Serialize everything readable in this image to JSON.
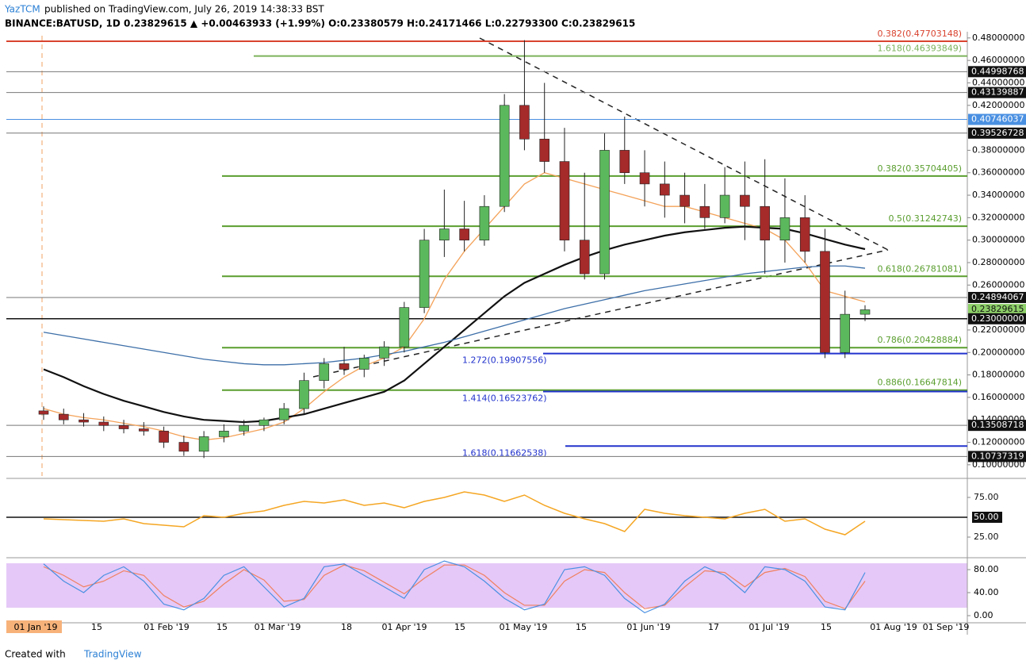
{
  "header": {
    "author": "YazTCM",
    "published": "published on TradingView.com, July 26, 2019 14:38:33 BST",
    "symbol": "BINANCE:BATUSD, 1D  0.23829615 ▲ +0.00463933 (+1.99%)  O:0.23380579  H:0.24171466  L:0.22793300  C:0.23829615"
  },
  "footer": {
    "created": "Created with",
    "brand": "TradingView"
  },
  "chart_data": {
    "type": "candlestick",
    "open": [
      0.148,
      0.145,
      0.14,
      0.138,
      0.135,
      0.132,
      0.13,
      0.12,
      0.112,
      0.125,
      0.13,
      0.135,
      0.14,
      0.15,
      0.175,
      0.19,
      0.185,
      0.195,
      0.205,
      0.24,
      0.3,
      0.31,
      0.3,
      0.33,
      0.42,
      0.39,
      0.37,
      0.3,
      0.27,
      0.38,
      0.36,
      0.35,
      0.34,
      0.33,
      0.32,
      0.34,
      0.33,
      0.3,
      0.32,
      0.29,
      0.2,
      0.234
    ],
    "high": [
      0.152,
      0.15,
      0.146,
      0.143,
      0.14,
      0.138,
      0.134,
      0.126,
      0.13,
      0.136,
      0.14,
      0.142,
      0.155,
      0.182,
      0.195,
      0.205,
      0.198,
      0.21,
      0.245,
      0.31,
      0.345,
      0.335,
      0.34,
      0.43,
      0.478,
      0.44,
      0.4,
      0.36,
      0.395,
      0.41,
      0.38,
      0.37,
      0.36,
      0.35,
      0.365,
      0.37,
      0.372,
      0.355,
      0.34,
      0.31,
      0.255,
      0.242
    ],
    "low": [
      0.14,
      0.136,
      0.134,
      0.13,
      0.128,
      0.126,
      0.115,
      0.108,
      0.106,
      0.12,
      0.126,
      0.13,
      0.136,
      0.145,
      0.168,
      0.18,
      0.178,
      0.188,
      0.2,
      0.235,
      0.285,
      0.29,
      0.295,
      0.325,
      0.38,
      0.36,
      0.29,
      0.265,
      0.265,
      0.35,
      0.33,
      0.32,
      0.315,
      0.31,
      0.315,
      0.3,
      0.27,
      0.28,
      0.28,
      0.195,
      0.195,
      0.228
    ],
    "close": [
      0.145,
      0.14,
      0.138,
      0.135,
      0.132,
      0.13,
      0.12,
      0.112,
      0.125,
      0.13,
      0.135,
      0.14,
      0.15,
      0.175,
      0.19,
      0.185,
      0.195,
      0.205,
      0.24,
      0.3,
      0.31,
      0.3,
      0.33,
      0.42,
      0.39,
      0.37,
      0.3,
      0.27,
      0.38,
      0.36,
      0.35,
      0.34,
      0.33,
      0.32,
      0.34,
      0.33,
      0.3,
      0.32,
      0.29,
      0.2,
      0.234,
      0.238
    ],
    "up_color": "#5cb85c",
    "down_color": "#a52a2a",
    "series": [
      {
        "color": "#f4a259",
        "values": [
          0.15,
          0.145,
          0.142,
          0.14,
          0.137,
          0.134,
          0.13,
          0.125,
          0.122,
          0.124,
          0.128,
          0.132,
          0.138,
          0.15,
          0.165,
          0.178,
          0.188,
          0.195,
          0.205,
          0.23,
          0.265,
          0.29,
          0.31,
          0.33,
          0.35,
          0.36,
          0.355,
          0.35,
          0.345,
          0.34,
          0.335,
          0.33,
          0.33,
          0.325,
          0.32,
          0.315,
          0.31,
          0.3,
          0.28,
          0.255,
          0.25,
          0.245
        ]
      },
      {
        "color": "#111111",
        "values": [
          0.185,
          0.178,
          0.17,
          0.163,
          0.157,
          0.152,
          0.147,
          0.143,
          0.14,
          0.139,
          0.138,
          0.139,
          0.142,
          0.145,
          0.15,
          0.155,
          0.16,
          0.165,
          0.175,
          0.19,
          0.205,
          0.22,
          0.235,
          0.25,
          0.262,
          0.27,
          0.278,
          0.285,
          0.291,
          0.296,
          0.3,
          0.304,
          0.307,
          0.309,
          0.311,
          0.312,
          0.311,
          0.31,
          0.306,
          0.301,
          0.296,
          0.292
        ]
      },
      {
        "color": "#3d6fa8",
        "values": [
          0.218,
          0.215,
          0.212,
          0.209,
          0.206,
          0.203,
          0.2,
          0.197,
          0.194,
          0.192,
          0.19,
          0.189,
          0.189,
          0.19,
          0.191,
          0.193,
          0.195,
          0.198,
          0.201,
          0.205,
          0.209,
          0.214,
          0.219,
          0.224,
          0.229,
          0.234,
          0.239,
          0.243,
          0.247,
          0.251,
          0.255,
          0.258,
          0.261,
          0.264,
          0.267,
          0.27,
          0.272,
          0.274,
          0.276,
          0.277,
          0.277,
          0.275
        ]
      }
    ],
    "ylim": [
      0.09,
      0.482
    ],
    "yticks": [
      {
        "value": 0.48,
        "label": "0.48000000"
      },
      {
        "value": 0.46,
        "label": "0.46000000"
      },
      {
        "value": 0.44,
        "label": "0.44000000"
      },
      {
        "value": 0.42,
        "label": "0.42000000"
      },
      {
        "value": 0.38,
        "label": "0.38000000"
      },
      {
        "value": 0.36,
        "label": "0.36000000"
      },
      {
        "value": 0.34,
        "label": "0.34000000"
      },
      {
        "value": 0.32,
        "label": "0.32000000"
      },
      {
        "value": 0.3,
        "label": "0.30000000"
      },
      {
        "value": 0.28,
        "label": "0.28000000"
      },
      {
        "value": 0.26,
        "label": "0.26000000"
      },
      {
        "value": 0.22,
        "label": "0.22000000"
      },
      {
        "value": 0.2,
        "label": "0.20000000"
      },
      {
        "value": 0.18,
        "label": "0.18000000"
      },
      {
        "value": 0.16,
        "label": "0.16000000"
      },
      {
        "value": 0.14,
        "label": "0.14000000"
      },
      {
        "value": 0.12,
        "label": "0.12000000"
      },
      {
        "value": 0.1,
        "label": "0.10000000"
      }
    ],
    "levels": [
      {
        "value": 0.44998768,
        "label": "0.44998768",
        "color": "#111111"
      },
      {
        "value": 0.43139887,
        "label": "0.43139887",
        "color": "#111111"
      },
      {
        "value": 0.40746037,
        "label": "0.40746037",
        "color": "#4a90e2"
      },
      {
        "value": 0.39526728,
        "label": "0.39526728",
        "color": "#111111"
      },
      {
        "value": 0.24894067,
        "label": "0.24894067",
        "color": "#111111"
      },
      {
        "value": 0.23829615,
        "label": "0.23829615",
        "color": "#8fd16a"
      },
      {
        "value": 0.23,
        "label": "0.23000000",
        "color": "#111111"
      },
      {
        "value": 0.13508718,
        "label": "0.13508718",
        "color": "#111111"
      },
      {
        "value": 0.10737319,
        "label": "0.10737319",
        "color": "#111111"
      }
    ],
    "fibs": [
      {
        "value": 0.47703148,
        "label": "0.382(0.47703148)",
        "color": "#d9432f"
      },
      {
        "value": 0.46393849,
        "label": "1.618(0.46393849)",
        "color": "#7cb35c"
      },
      {
        "value": 0.35704405,
        "label": "0.382(0.35704405)",
        "color": "#5a9e2f"
      },
      {
        "value": 0.31242743,
        "label": "0.5(0.31242743)",
        "color": "#5a9e2f"
      },
      {
        "value": 0.26781081,
        "label": "0.618(0.26781081)",
        "color": "#5a9e2f"
      },
      {
        "value": 0.20428884,
        "label": "0.786(0.20428884)",
        "color": "#5a9e2f"
      },
      {
        "value": 0.16647814,
        "label": "0.886(0.16647814)",
        "color": "#5a9e2f"
      },
      {
        "value": 0.19907556,
        "label": "1.272(0.19907556)",
        "color": "#2233cc"
      },
      {
        "value": 0.16523762,
        "label": "1.414(0.16523762)",
        "color": "#2233cc"
      },
      {
        "value": 0.11662538,
        "label": "1.618(0.11662538)",
        "color": "#2233cc"
      }
    ],
    "time_labels": [
      "01 Jan '19",
      "15",
      "01 Feb '19",
      "15",
      "01 Mar '19",
      "18",
      "01 Apr '19",
      "15",
      "01 May '19",
      "15",
      "01 Jun '19",
      "17",
      "01 Jul '19",
      "15",
      "01 Aug '19",
      "01 Sep '19"
    ],
    "rsi": {
      "color": "#f5a623",
      "values": [
        48,
        47,
        46,
        45,
        48,
        42,
        40,
        38,
        52,
        50,
        55,
        58,
        65,
        70,
        68,
        72,
        65,
        68,
        62,
        70,
        75,
        82,
        78,
        70,
        78,
        65,
        55,
        48,
        42,
        32,
        60,
        55,
        52,
        50,
        48,
        55,
        60,
        45,
        48,
        35,
        28,
        45
      ],
      "ylim": [
        0,
        100
      ],
      "yticks": [
        {
          "value": 75,
          "label": "75.00"
        },
        {
          "value": 50,
          "label": "50.00"
        },
        {
          "value": 25,
          "label": "25.00"
        }
      ]
    },
    "stoch": {
      "k_color": "#4a90e2",
      "d_color": "#f08060",
      "k": [
        90,
        60,
        40,
        70,
        85,
        60,
        20,
        10,
        30,
        70,
        85,
        50,
        15,
        30,
        85,
        90,
        70,
        50,
        30,
        80,
        95,
        85,
        60,
        30,
        10,
        20,
        80,
        85,
        70,
        30,
        5,
        20,
        60,
        85,
        70,
        40,
        85,
        80,
        60,
        15,
        10,
        75
      ],
      "d": [
        85,
        70,
        50,
        60,
        78,
        70,
        35,
        15,
        25,
        55,
        80,
        62,
        25,
        28,
        70,
        88,
        78,
        58,
        38,
        65,
        88,
        88,
        70,
        40,
        18,
        18,
        60,
        80,
        75,
        40,
        12,
        18,
        50,
        78,
        75,
        50,
        75,
        82,
        68,
        25,
        12,
        60
      ],
      "ylim": [
        -5,
        105
      ],
      "yticks": [
        {
          "value": 80,
          "label": "80.00"
        },
        {
          "value": 40,
          "label": "40.00"
        },
        {
          "value": 0,
          "label": "0.00"
        }
      ]
    }
  }
}
